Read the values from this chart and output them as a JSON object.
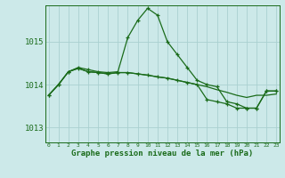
{
  "title": "Graphe pression niveau de la mer (hPa)",
  "xlabel_ticks": [
    "0",
    "1",
    "2",
    "3",
    "4",
    "5",
    "6",
    "7",
    "8",
    "9",
    "10",
    "11",
    "12",
    "13",
    "14",
    "15",
    "16",
    "17",
    "18",
    "19",
    "20",
    "21",
    "22",
    "23"
  ],
  "yticks": [
    1013,
    1014,
    1015
  ],
  "ylim": [
    1012.65,
    1015.85
  ],
  "xlim": [
    -0.3,
    23.3
  ],
  "background_color": "#cce9e9",
  "grid_color": "#aad0d0",
  "line_color": "#1a6b1a",
  "line1": [
    1013.75,
    1014.0,
    1014.3,
    1014.4,
    1014.35,
    1014.3,
    1014.28,
    1014.3,
    1015.1,
    1015.5,
    1015.78,
    1015.62,
    1015.0,
    1014.7,
    1014.4,
    1014.1,
    1014.0,
    1013.95,
    1013.6,
    1013.55,
    1013.45,
    1013.45,
    1013.85,
    1013.85
  ],
  "line2": [
    1013.75,
    1014.0,
    1014.3,
    1014.38,
    1014.3,
    1014.28,
    1014.25,
    1014.28,
    1014.28,
    1014.25,
    1014.22,
    1014.18,
    1014.15,
    1014.1,
    1014.05,
    1014.0,
    1013.95,
    1013.88,
    1013.82,
    1013.75,
    1013.7,
    1013.75,
    1013.75,
    1013.78
  ],
  "line3": [
    1013.75,
    1014.0,
    1014.3,
    1014.38,
    1014.3,
    1014.28,
    1014.25,
    1014.28,
    1014.28,
    1014.25,
    1014.22,
    1014.18,
    1014.15,
    1014.1,
    1014.05,
    1014.0,
    1013.65,
    1013.6,
    1013.55,
    1013.45,
    1013.45,
    1013.45,
    1013.85,
    1013.85
  ]
}
